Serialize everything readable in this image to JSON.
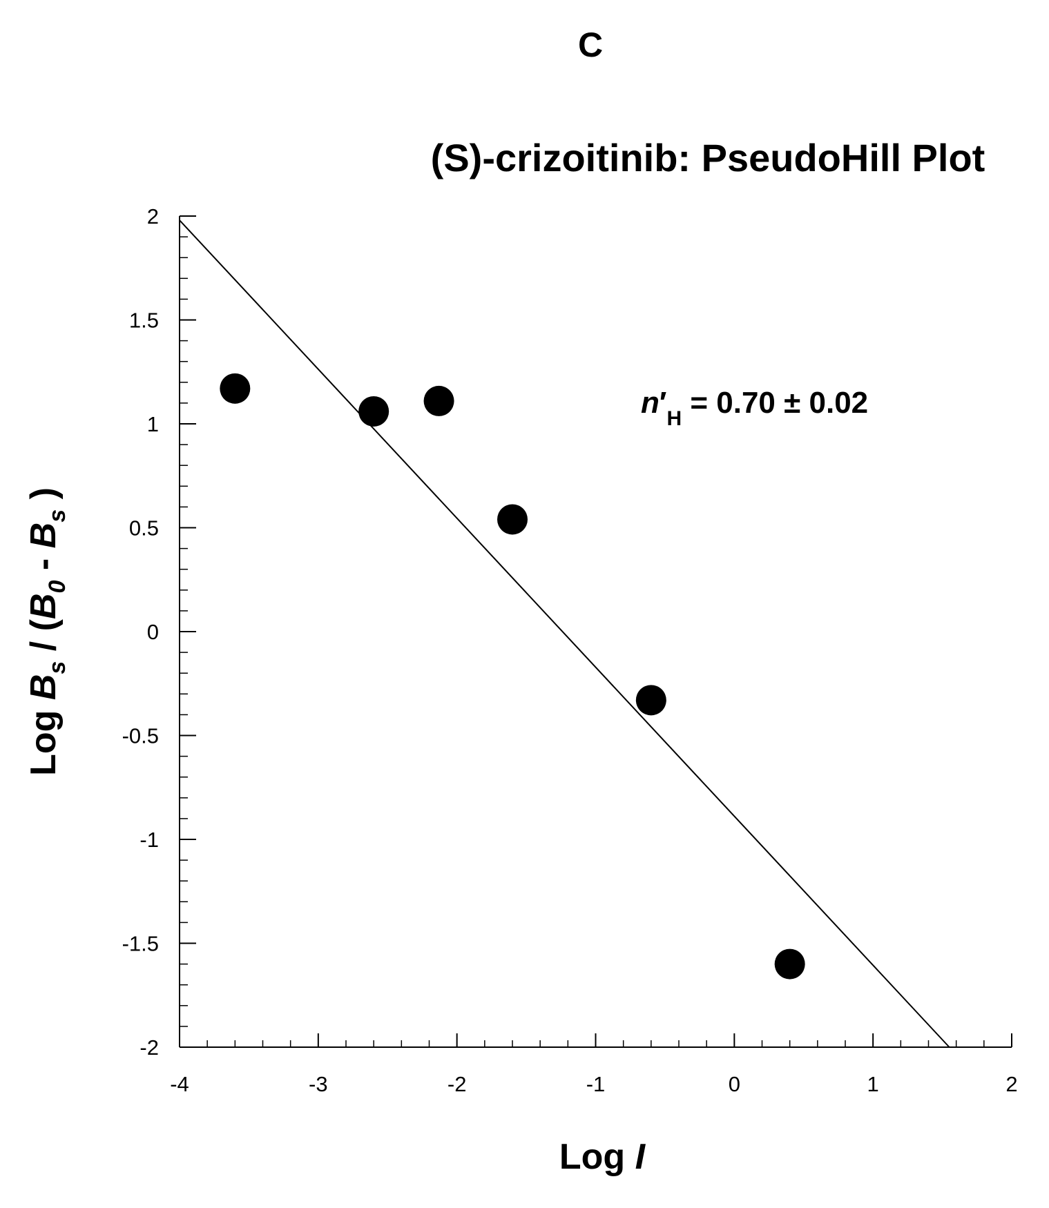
{
  "chart_data": {
    "type": "scatter",
    "panel_label": "C",
    "title": "(S)-crizoitinib: PseudoHill Plot",
    "xlabel": {
      "prefix": "Log ",
      "italic": "I"
    },
    "ylabel": {
      "p1": "Log ",
      "b1": "B",
      "s1": "s",
      "p2": " / (",
      "b2": "B",
      "s2": "0",
      "p3": " - ",
      "b3": "B",
      "s3": "s",
      "p4": " )"
    },
    "xlim": [
      -4,
      2
    ],
    "ylim": [
      -2,
      2
    ],
    "xticks": [
      -4,
      -3,
      -2,
      -1,
      0,
      1,
      2
    ],
    "yticks": [
      -2,
      -1.5,
      -1,
      -0.5,
      0,
      0.5,
      1,
      1.5,
      2
    ],
    "x_minor_step": 0.2,
    "y_minor_step": 0.1,
    "grid": false,
    "series": [
      {
        "points": [
          {
            "x": -3.6,
            "y": 1.17
          },
          {
            "x": -2.6,
            "y": 1.06
          },
          {
            "x": -2.13,
            "y": 1.11
          },
          {
            "x": -1.6,
            "y": 0.54
          },
          {
            "x": -0.6,
            "y": -0.33
          },
          {
            "x": 0.4,
            "y": -1.6
          }
        ],
        "color": "#000000"
      }
    ],
    "fit_line": {
      "x": [
        -4.0,
        1.55
      ],
      "y": [
        1.98,
        -2.0
      ]
    },
    "annotation": {
      "n": "n",
      "prime": "′",
      "sub": "H",
      "rest": " = 0.70 ± 0.02"
    }
  }
}
